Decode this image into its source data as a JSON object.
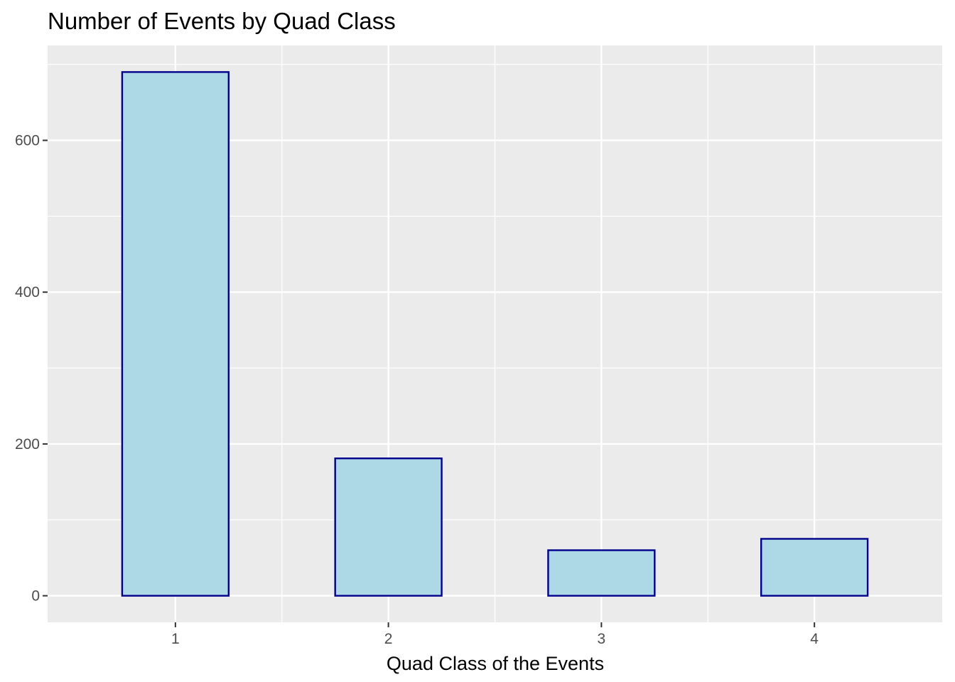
{
  "chart_data": {
    "type": "bar",
    "title": "Number of Events by Quad Class",
    "xlabel": "Quad Class of the Events",
    "ylabel": "",
    "categories": [
      "1",
      "2",
      "3",
      "4"
    ],
    "values": [
      690,
      181,
      60,
      75
    ],
    "ylim": [
      -35,
      725
    ],
    "yticks": [
      0,
      200,
      400,
      600
    ],
    "grid": true,
    "legend": "none",
    "colors": {
      "panel": "#ebebeb",
      "grid": "#ffffff",
      "bar_fill": "#add8e6",
      "bar_stroke": "#00008b",
      "tick_label": "#4d4d4d",
      "tick_mark": "#333333"
    }
  }
}
